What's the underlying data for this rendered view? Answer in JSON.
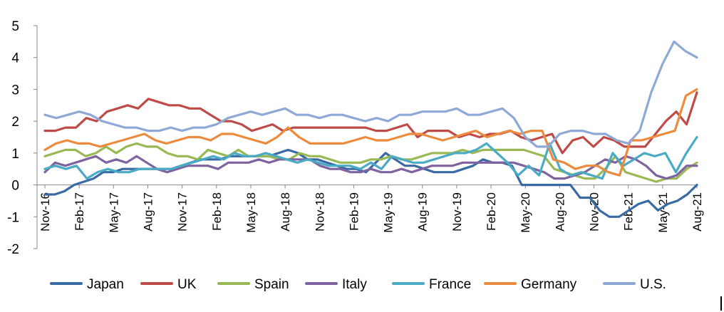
{
  "chart_data": {
    "type": "line",
    "title": "",
    "xlabel": "",
    "ylabel": "",
    "ylim": [
      -2,
      5
    ],
    "yticks": [
      -2,
      -1,
      0,
      1,
      2,
      3,
      4,
      5
    ],
    "grid": false,
    "legend_position": "bottom",
    "x_start": "Nov-16",
    "x_tick_labels": [
      "Nov-16",
      "Feb-17",
      "May-17",
      "Aug-17",
      "Nov-17",
      "Feb-18",
      "May-18",
      "Aug-18",
      "Nov-18",
      "Feb-19",
      "May-19",
      "Aug-19",
      "Nov-19",
      "Feb-20",
      "May-20",
      "Aug-20",
      "Nov-20",
      "Feb-21",
      "May-21",
      "Aug-21"
    ],
    "series": [
      {
        "name": "Japan",
        "color": "#3a6aa3",
        "values": [
          -0.3,
          -0.3,
          -0.2,
          0,
          0.1,
          0.2,
          0.4,
          0.4,
          0.5,
          0.5,
          0.5,
          0.5,
          0.5,
          0.5,
          0.6,
          0.7,
          0.8,
          0.8,
          0.8,
          0.9,
          0.9,
          0.9,
          0.9,
          0.9,
          1.0,
          1.1,
          1.0,
          0.8,
          0.8,
          0.7,
          0.6,
          0.5,
          0.5,
          0.4,
          0.7,
          1.0,
          0.8,
          0.6,
          0.6,
          0.5,
          0.4,
          0.4,
          0.4,
          0.5,
          0.6,
          0.8,
          0.7,
          0.7,
          0.6,
          0.0,
          0.0,
          0.0,
          0.0,
          0.0,
          0.0,
          -0.4,
          -0.4,
          -0.8,
          -1.0,
          -1.0,
          -0.8,
          -0.6,
          -0.5,
          -0.8,
          -0.6,
          -0.5,
          -0.3,
          0.0
        ]
      },
      {
        "name": "UK",
        "color": "#be4b48",
        "values": [
          1.7,
          1.7,
          1.8,
          1.8,
          2.1,
          2.0,
          2.3,
          2.4,
          2.5,
          2.4,
          2.7,
          2.6,
          2.5,
          2.5,
          2.4,
          2.4,
          2.2,
          2.0,
          2.0,
          1.9,
          1.7,
          1.8,
          1.9,
          1.7,
          1.8,
          1.8,
          1.8,
          1.8,
          1.8,
          1.8,
          1.8,
          1.8,
          1.7,
          1.7,
          1.8,
          1.9,
          1.5,
          1.7,
          1.7,
          1.7,
          1.5,
          1.6,
          1.5,
          1.6,
          1.6,
          1.7,
          1.5,
          1.4,
          1.5,
          1.6,
          1.0,
          1.4,
          1.5,
          1.2,
          1.5,
          1.4,
          1.2,
          1.2,
          1.2,
          1.6,
          2.0,
          2.3,
          1.9,
          2.9
        ]
      },
      {
        "name": "Spain",
        "color": "#98b954",
        "values": [
          0.9,
          1.0,
          1.1,
          1.1,
          0.9,
          1.0,
          1.2,
          1.0,
          1.2,
          1.3,
          1.2,
          1.2,
          1.0,
          0.9,
          0.9,
          0.8,
          1.1,
          1.0,
          0.9,
          1.1,
          0.9,
          0.9,
          0.9,
          0.8,
          0.8,
          1.0,
          0.9,
          0.9,
          0.8,
          0.7,
          0.7,
          0.7,
          0.8,
          0.8,
          0.9,
          0.8,
          0.8,
          0.9,
          1.0,
          1.0,
          1.0,
          1.1,
          1.0,
          1.1,
          1.1,
          1.1,
          1.1,
          1.1,
          1.0,
          0.9,
          0.5,
          0.4,
          0.3,
          0.2,
          0.2,
          0.5,
          0.9,
          0.4,
          0.3,
          0.2,
          0.1,
          0.2,
          0.2,
          0.5,
          0.7
        ]
      },
      {
        "name": "Italy",
        "color": "#7e63a0",
        "values": [
          0.4,
          0.7,
          0.6,
          0.7,
          0.8,
          0.9,
          0.7,
          0.8,
          0.7,
          0.9,
          0.7,
          0.5,
          0.4,
          0.5,
          0.6,
          0.6,
          0.6,
          0.5,
          0.7,
          0.7,
          0.7,
          0.8,
          0.7,
          0.8,
          0.8,
          0.8,
          0.8,
          0.6,
          0.5,
          0.5,
          0.4,
          0.4,
          0.5,
          0.4,
          0.4,
          0.5,
          0.4,
          0.5,
          0.6,
          0.6,
          0.6,
          0.7,
          0.7,
          0.7,
          0.7,
          0.7,
          0.7,
          0.6,
          0.5,
          0.4,
          0.2,
          0.2,
          0.3,
          0.4,
          0.6,
          0.8,
          0.7,
          0.9,
          0.8,
          0.6,
          0.3,
          0.2,
          0.3,
          0.6,
          0.6
        ]
      },
      {
        "name": "France",
        "color": "#4aabc5",
        "values": [
          0.5,
          0.6,
          0.5,
          0.6,
          0.2,
          0.4,
          0.5,
          0.4,
          0.4,
          0.5,
          0.5,
          0.5,
          0.5,
          0.6,
          0.7,
          0.8,
          0.9,
          0.8,
          1.0,
          0.9,
          0.9,
          1.0,
          0.9,
          0.8,
          0.7,
          0.8,
          0.7,
          0.6,
          0.6,
          0.6,
          0.5,
          0.7,
          0.5,
          0.9,
          0.8,
          0.7,
          0.7,
          0.8,
          0.9,
          1.0,
          1.0,
          1.1,
          1.3,
          1.0,
          0.7,
          0.3,
          0.6,
          0.3,
          1.3,
          0.5,
          0.3,
          0.4,
          0.3,
          0.2,
          1.0,
          0.6,
          0.8,
          1.0,
          0.9,
          1.0,
          0.4,
          1.0,
          1.5
        ]
      },
      {
        "name": "Germany",
        "color": "#ec8b3e",
        "values": [
          1.1,
          1.3,
          1.4,
          1.3,
          1.3,
          1.2,
          1.3,
          1.4,
          1.5,
          1.6,
          1.4,
          1.3,
          1.4,
          1.5,
          1.5,
          1.4,
          1.6,
          1.6,
          1.5,
          1.4,
          1.3,
          1.5,
          1.8,
          1.5,
          1.3,
          1.3,
          1.3,
          1.3,
          1.4,
          1.5,
          1.4,
          1.4,
          1.5,
          1.6,
          1.6,
          1.5,
          1.4,
          1.5,
          1.6,
          1.7,
          1.5,
          1.6,
          1.7,
          1.6,
          1.7,
          1.7,
          0.8,
          0.7,
          0.5,
          0.6,
          0.6,
          0.4,
          0.3,
          1.4,
          1.4,
          1.5,
          1.6,
          1.7,
          2.8,
          3.0
        ]
      },
      {
        "name": "U.S.",
        "color": "#8fa9d6",
        "values": [
          2.2,
          2.1,
          2.2,
          2.3,
          2.2,
          2.0,
          1.9,
          1.8,
          1.8,
          1.7,
          1.7,
          1.8,
          1.7,
          1.8,
          1.8,
          1.9,
          2.1,
          2.2,
          2.3,
          2.2,
          2.3,
          2.4,
          2.2,
          2.2,
          2.1,
          2.2,
          2.2,
          2.1,
          2.0,
          2.1,
          2.0,
          2.2,
          2.2,
          2.3,
          2.3,
          2.3,
          2.4,
          2.2,
          2.2,
          2.3,
          2.4,
          2.1,
          1.5,
          1.2,
          1.2,
          1.6,
          1.7,
          1.7,
          1.6,
          1.6,
          1.4,
          1.3,
          1.7,
          2.9,
          3.8,
          4.5,
          4.2,
          4.0
        ]
      }
    ]
  }
}
